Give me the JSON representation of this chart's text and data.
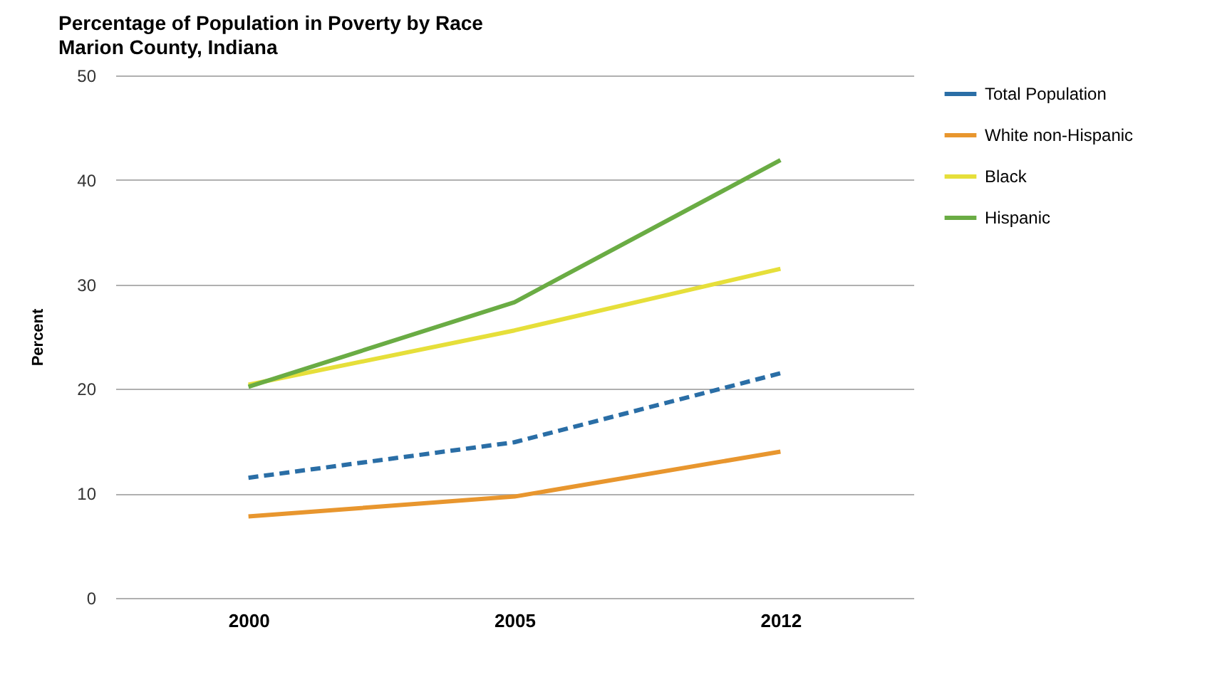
{
  "chart_data": {
    "type": "line",
    "title": "Percentage of Population in Poverty by Race",
    "subtitle": "Marion County, Indiana",
    "ylabel": "Percent",
    "categories": [
      "2000",
      "2005",
      "2012"
    ],
    "ylim": [
      0,
      50
    ],
    "yticks": [
      0,
      10,
      20,
      30,
      40,
      50
    ],
    "grid": "y",
    "legend": "right",
    "series": [
      {
        "name": "Total Population",
        "color": "#2a6ea6",
        "line_style": "dashed",
        "values": [
          11.5,
          14.9,
          21.5
        ]
      },
      {
        "name": "White non-Hispanic",
        "color": "#e8962e",
        "line_style": "solid",
        "values": [
          7.8,
          9.7,
          14.0
        ]
      },
      {
        "name": "Black",
        "color": "#e6df3a",
        "line_style": "solid",
        "values": [
          20.4,
          25.6,
          31.5
        ]
      },
      {
        "name": "Hispanic",
        "color": "#6aac44",
        "line_style": "solid",
        "values": [
          20.2,
          28.3,
          41.9
        ]
      }
    ]
  }
}
